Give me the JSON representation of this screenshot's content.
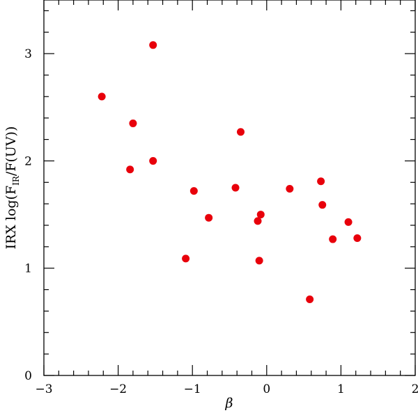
{
  "chart_data": {
    "type": "scatter",
    "xlabel": "β",
    "ylabel": "IRX log(F_IR/F(UV))",
    "ylabel_parts": {
      "prefix": "IRX log(F",
      "sub": "IR",
      "suffix": "/F(UV))"
    },
    "xlim": [
      -3,
      2
    ],
    "ylim": [
      0,
      3.5
    ],
    "x_ticks": [
      -3,
      -2,
      -1,
      0,
      1,
      2
    ],
    "x_tick_labels": [
      "−3",
      "−2",
      "−1",
      "0",
      "1",
      "2"
    ],
    "y_ticks": [
      0,
      1,
      2,
      3
    ],
    "y_tick_labels": [
      "0",
      "1",
      "2",
      "3"
    ],
    "grid": false,
    "marker_color": "#e8000b",
    "points": [
      {
        "x": -2.22,
        "y": 2.6
      },
      {
        "x": -1.53,
        "y": 3.08
      },
      {
        "x": -1.8,
        "y": 2.35
      },
      {
        "x": -1.84,
        "y": 1.92
      },
      {
        "x": -1.53,
        "y": 2.0
      },
      {
        "x": -1.09,
        "y": 1.09
      },
      {
        "x": -0.98,
        "y": 1.72
      },
      {
        "x": -0.78,
        "y": 1.47
      },
      {
        "x": -0.42,
        "y": 1.75
      },
      {
        "x": -0.35,
        "y": 2.27
      },
      {
        "x": -0.12,
        "y": 1.44
      },
      {
        "x": -0.08,
        "y": 1.5
      },
      {
        "x": -0.1,
        "y": 1.07
      },
      {
        "x": 0.31,
        "y": 1.74
      },
      {
        "x": 0.58,
        "y": 0.71
      },
      {
        "x": 0.73,
        "y": 1.81
      },
      {
        "x": 0.75,
        "y": 1.59
      },
      {
        "x": 0.89,
        "y": 1.27
      },
      {
        "x": 1.1,
        "y": 1.43
      },
      {
        "x": 1.22,
        "y": 1.28
      }
    ]
  }
}
